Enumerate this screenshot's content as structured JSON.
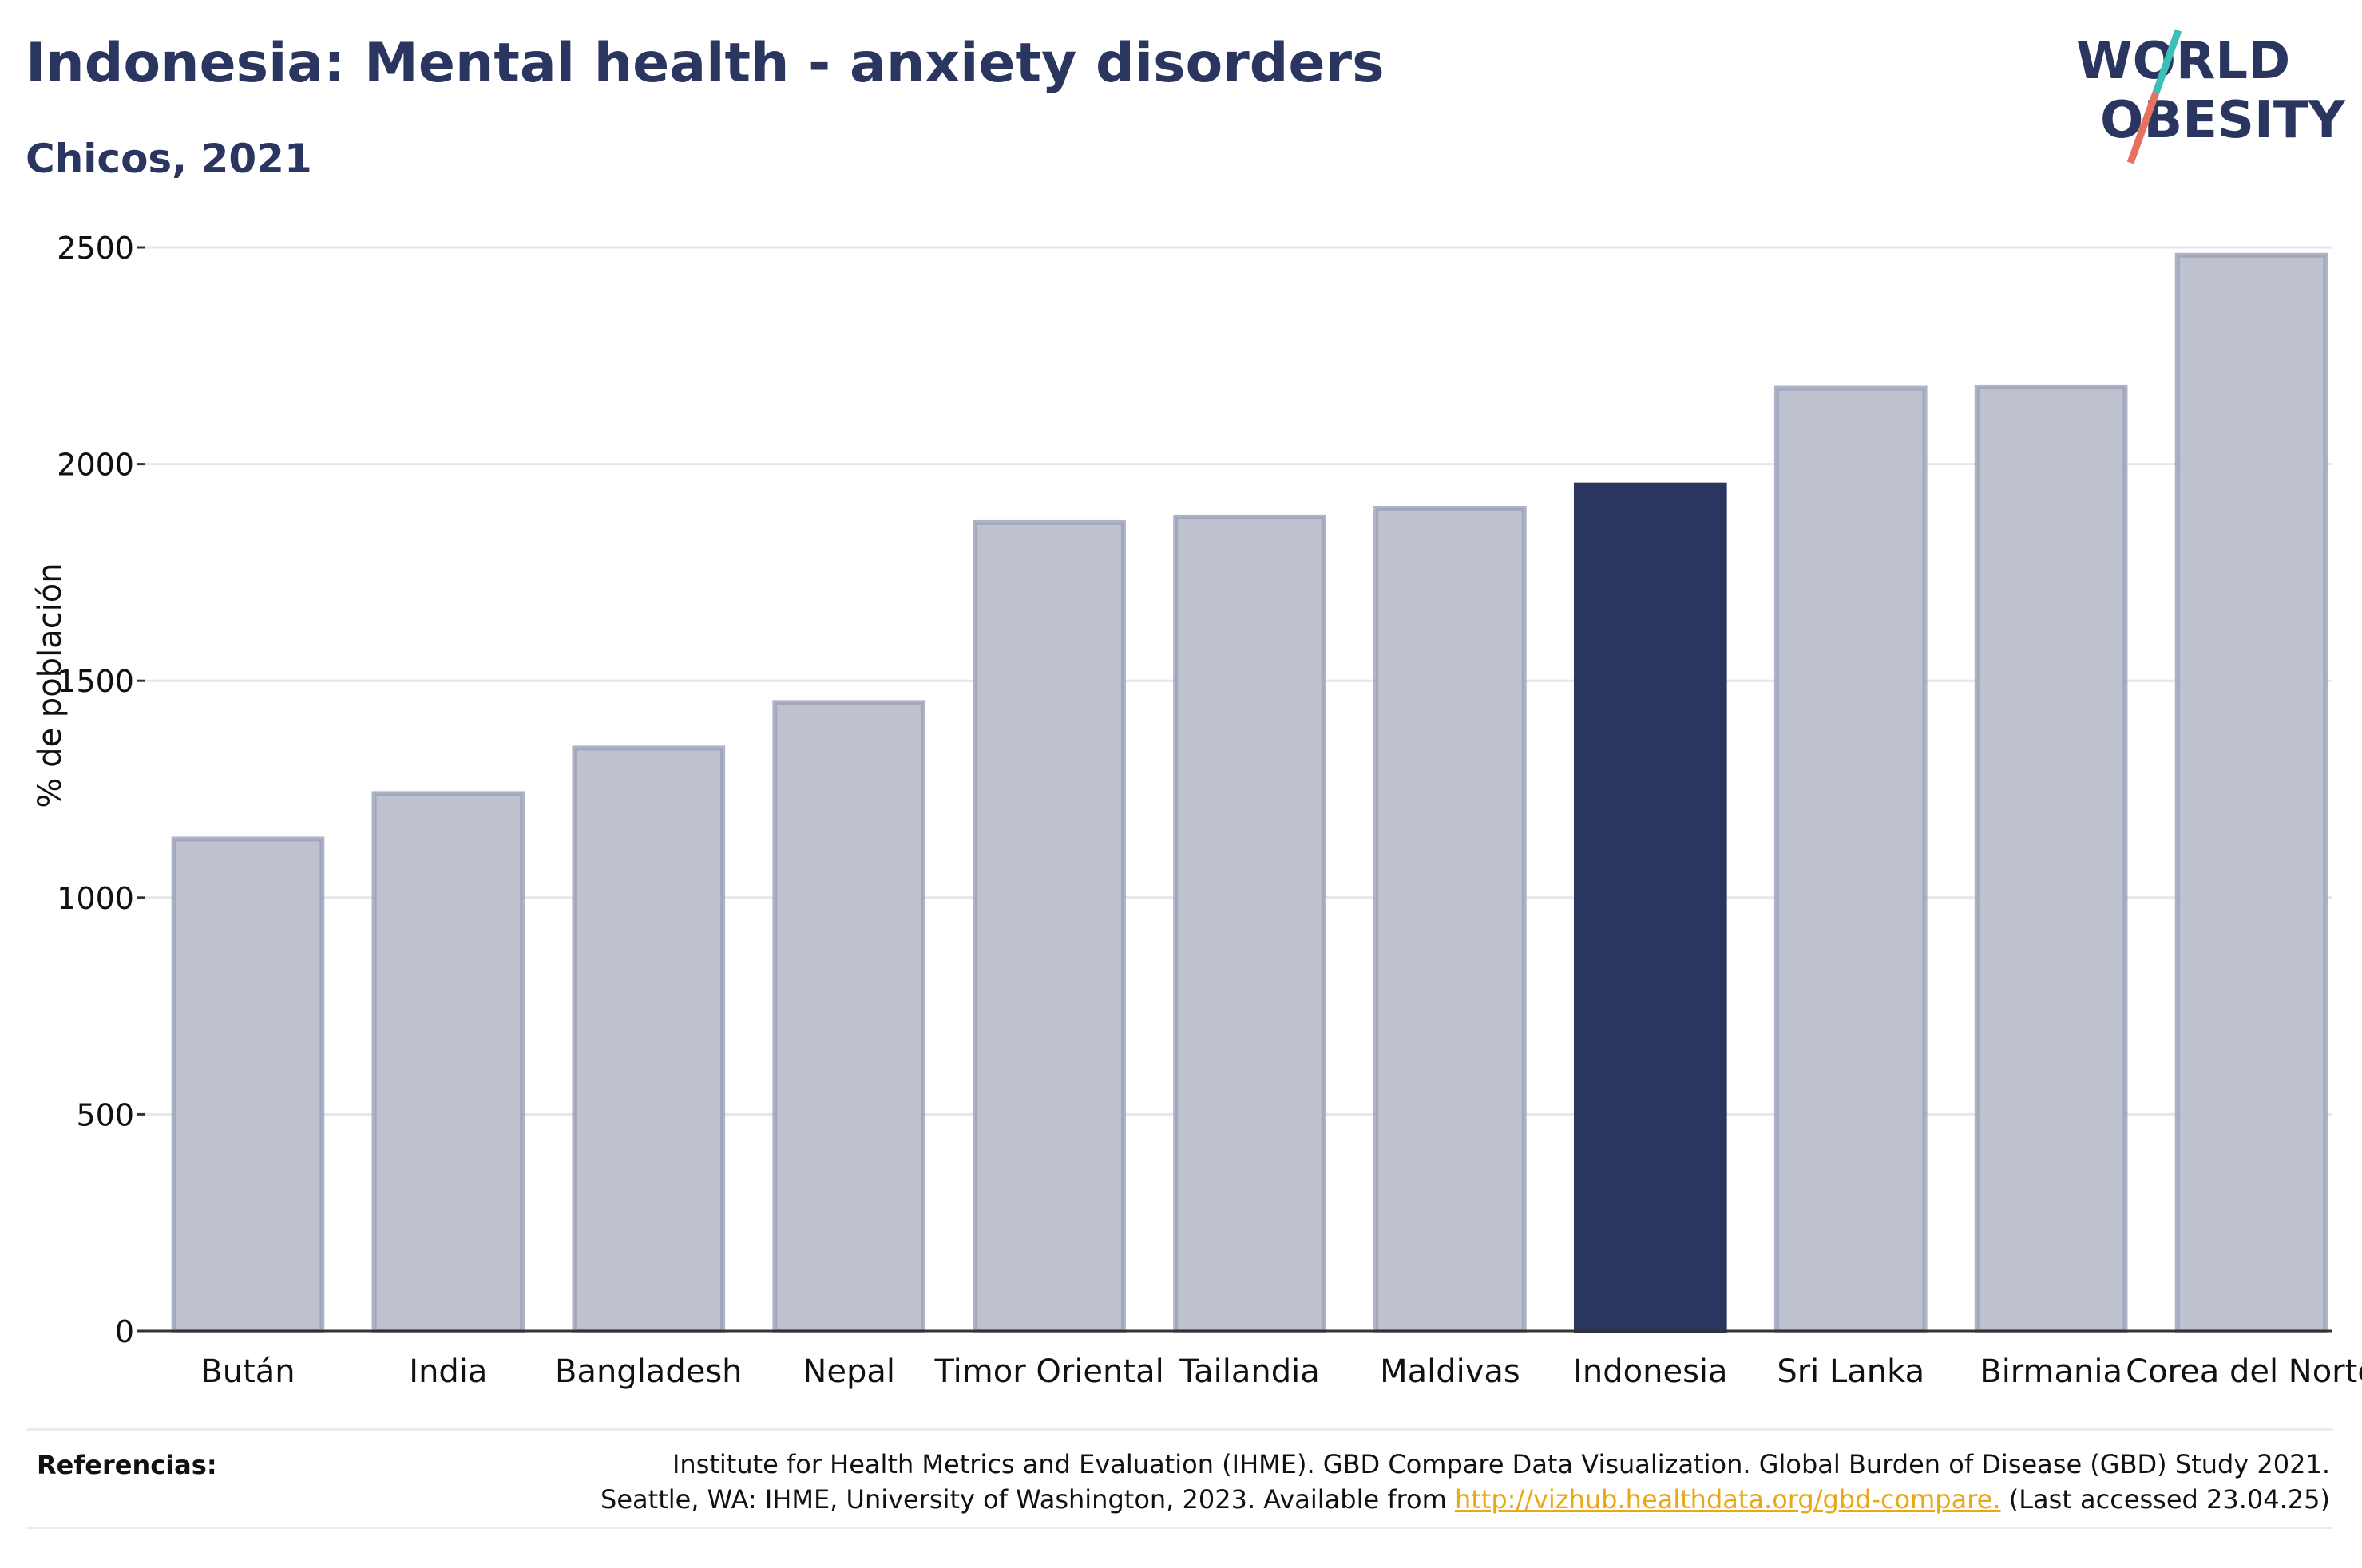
{
  "header": {
    "title": "Indonesia: Mental health - anxiety disorders",
    "subtitle": "Chicos, 2021"
  },
  "logo": {
    "line1": "WORLD",
    "line2": "OBESITY",
    "colors": {
      "text": "#2a3560",
      "slash_top": "#3bbfb7",
      "slash_bottom": "#e8705f"
    }
  },
  "chart_data": {
    "type": "bar",
    "title": "Indonesia: Mental health - anxiety disorders",
    "subtitle": "Chicos, 2021",
    "xlabel": "",
    "ylabel": "% de población",
    "ylim": [
      0,
      2500
    ],
    "yticks": [
      0,
      500,
      1000,
      1500,
      2000,
      2500
    ],
    "grid": true,
    "categories": [
      "Bután",
      "India",
      "Bangladesh",
      "Nepal",
      "Timor Oriental",
      "Tailandia",
      "Maldivas",
      "Indonesia",
      "Sri Lanka",
      "Birmania",
      "Corea del Norte"
    ],
    "values": [
      1135,
      1240,
      1345,
      1450,
      1865,
      1878,
      1898,
      1952,
      2175,
      2178,
      2482
    ],
    "highlight": "Indonesia",
    "colors": {
      "bar": "#bec2cf",
      "bar_border": "#9aa0b8",
      "highlight": "#2a3560",
      "grid": "#e6e6ec",
      "axis": "#333333"
    }
  },
  "references": {
    "label": "Referencias:",
    "line1": "Institute for Health Metrics and Evaluation (IHME). GBD Compare Data Visualization. Global Burden of Disease (GBD) Study 2021.",
    "line2_before": "Seattle, WA: IHME, University of Washington, 2023. Available from ",
    "link": "http://vizhub.healthdata.org/gbd-compare.",
    "line2_after": " (Last accessed 23.04.25)"
  }
}
